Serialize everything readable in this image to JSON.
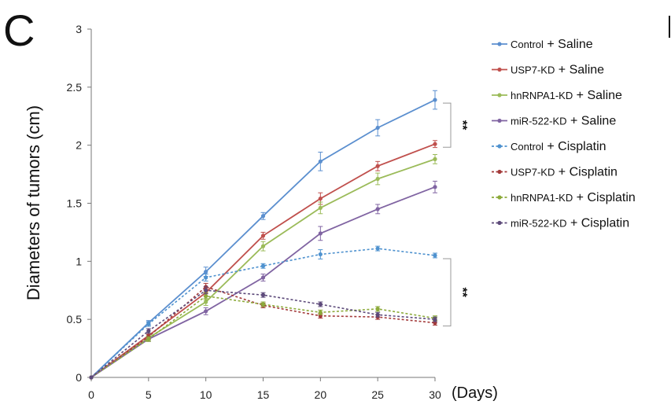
{
  "chart_data": {
    "type": "line",
    "panel_label": "C",
    "ylabel": "Diameters of tumors (cm)",
    "xlabel": "(Days)",
    "x": [
      0,
      5,
      10,
      15,
      20,
      25,
      30
    ],
    "xlim": [
      0,
      30
    ],
    "ylim": [
      0,
      3
    ],
    "x_ticks": [
      0,
      5,
      10,
      15,
      20,
      25,
      30
    ],
    "y_ticks": [
      0,
      0.5,
      1,
      1.5,
      2,
      2.5,
      3
    ],
    "y_tick_labels": [
      "0",
      "0.5",
      "1",
      "1.5",
      "2",
      "2.5",
      "3"
    ],
    "grid": false,
    "legend_position": "right",
    "series": [
      {
        "name_main": "Control",
        "name_suffix": " + Saline",
        "color": "#5b8fcf",
        "dashed": false,
        "values": [
          0,
          0.47,
          0.91,
          1.39,
          1.86,
          2.15,
          2.39
        ],
        "errors": [
          0,
          0.02,
          0.04,
          0.03,
          0.08,
          0.07,
          0.08
        ]
      },
      {
        "name_main": "USP7-KD",
        "name_suffix": " + Saline",
        "color": "#c0504d",
        "dashed": false,
        "values": [
          0,
          0.36,
          0.73,
          1.22,
          1.54,
          1.82,
          2.01
        ],
        "errors": [
          0,
          0.02,
          0.03,
          0.03,
          0.05,
          0.04,
          0.03
        ]
      },
      {
        "name_main": "hnRNPA1-KD",
        "name_suffix": " + Saline",
        "color": "#9bbb59",
        "dashed": false,
        "values": [
          0,
          0.34,
          0.65,
          1.13,
          1.46,
          1.71,
          1.88
        ],
        "errors": [
          0,
          0.02,
          0.03,
          0.04,
          0.05,
          0.05,
          0.04
        ]
      },
      {
        "name_main": "miR-522-KD",
        "name_suffix": " + Saline",
        "color": "#8064a2",
        "dashed": false,
        "values": [
          0,
          0.33,
          0.57,
          0.86,
          1.24,
          1.45,
          1.64
        ],
        "errors": [
          0,
          0.02,
          0.03,
          0.03,
          0.06,
          0.04,
          0.05
        ]
      },
      {
        "name_main": "Control",
        "name_suffix": " + Cisplatin",
        "color": "#4f92cf",
        "dashed": true,
        "values": [
          0,
          0.46,
          0.86,
          0.96,
          1.06,
          1.11,
          1.05
        ],
        "errors": [
          0,
          0.02,
          0.03,
          0.02,
          0.04,
          0.02,
          0.02
        ]
      },
      {
        "name_main": "USP7-KD",
        "name_suffix": " + Cisplatin",
        "color": "#a33a3a",
        "dashed": true,
        "values": [
          0,
          0.35,
          0.78,
          0.62,
          0.53,
          0.52,
          0.47
        ],
        "errors": [
          0,
          0.02,
          0.03,
          0.02,
          0.02,
          0.02,
          0.02
        ]
      },
      {
        "name_main": "hnRNPA1-KD",
        "name_suffix": " + Cisplatin",
        "color": "#8caa3a",
        "dashed": true,
        "values": [
          0,
          0.33,
          0.7,
          0.63,
          0.56,
          0.59,
          0.51
        ],
        "errors": [
          0,
          0.02,
          0.03,
          0.02,
          0.02,
          0.02,
          0.02
        ]
      },
      {
        "name_main": "miR-522-KD",
        "name_suffix": " + Cisplatin",
        "color": "#5d4a7a",
        "dashed": true,
        "values": [
          0,
          0.4,
          0.75,
          0.71,
          0.63,
          0.54,
          0.5
        ],
        "errors": [
          0,
          0.02,
          0.03,
          0.02,
          0.02,
          0.02,
          0.02
        ]
      }
    ],
    "significance": [
      {
        "label": "**",
        "from_series": 0,
        "to_series": 1
      },
      {
        "label": "**",
        "from_series": 4,
        "to_series": 5
      }
    ]
  }
}
